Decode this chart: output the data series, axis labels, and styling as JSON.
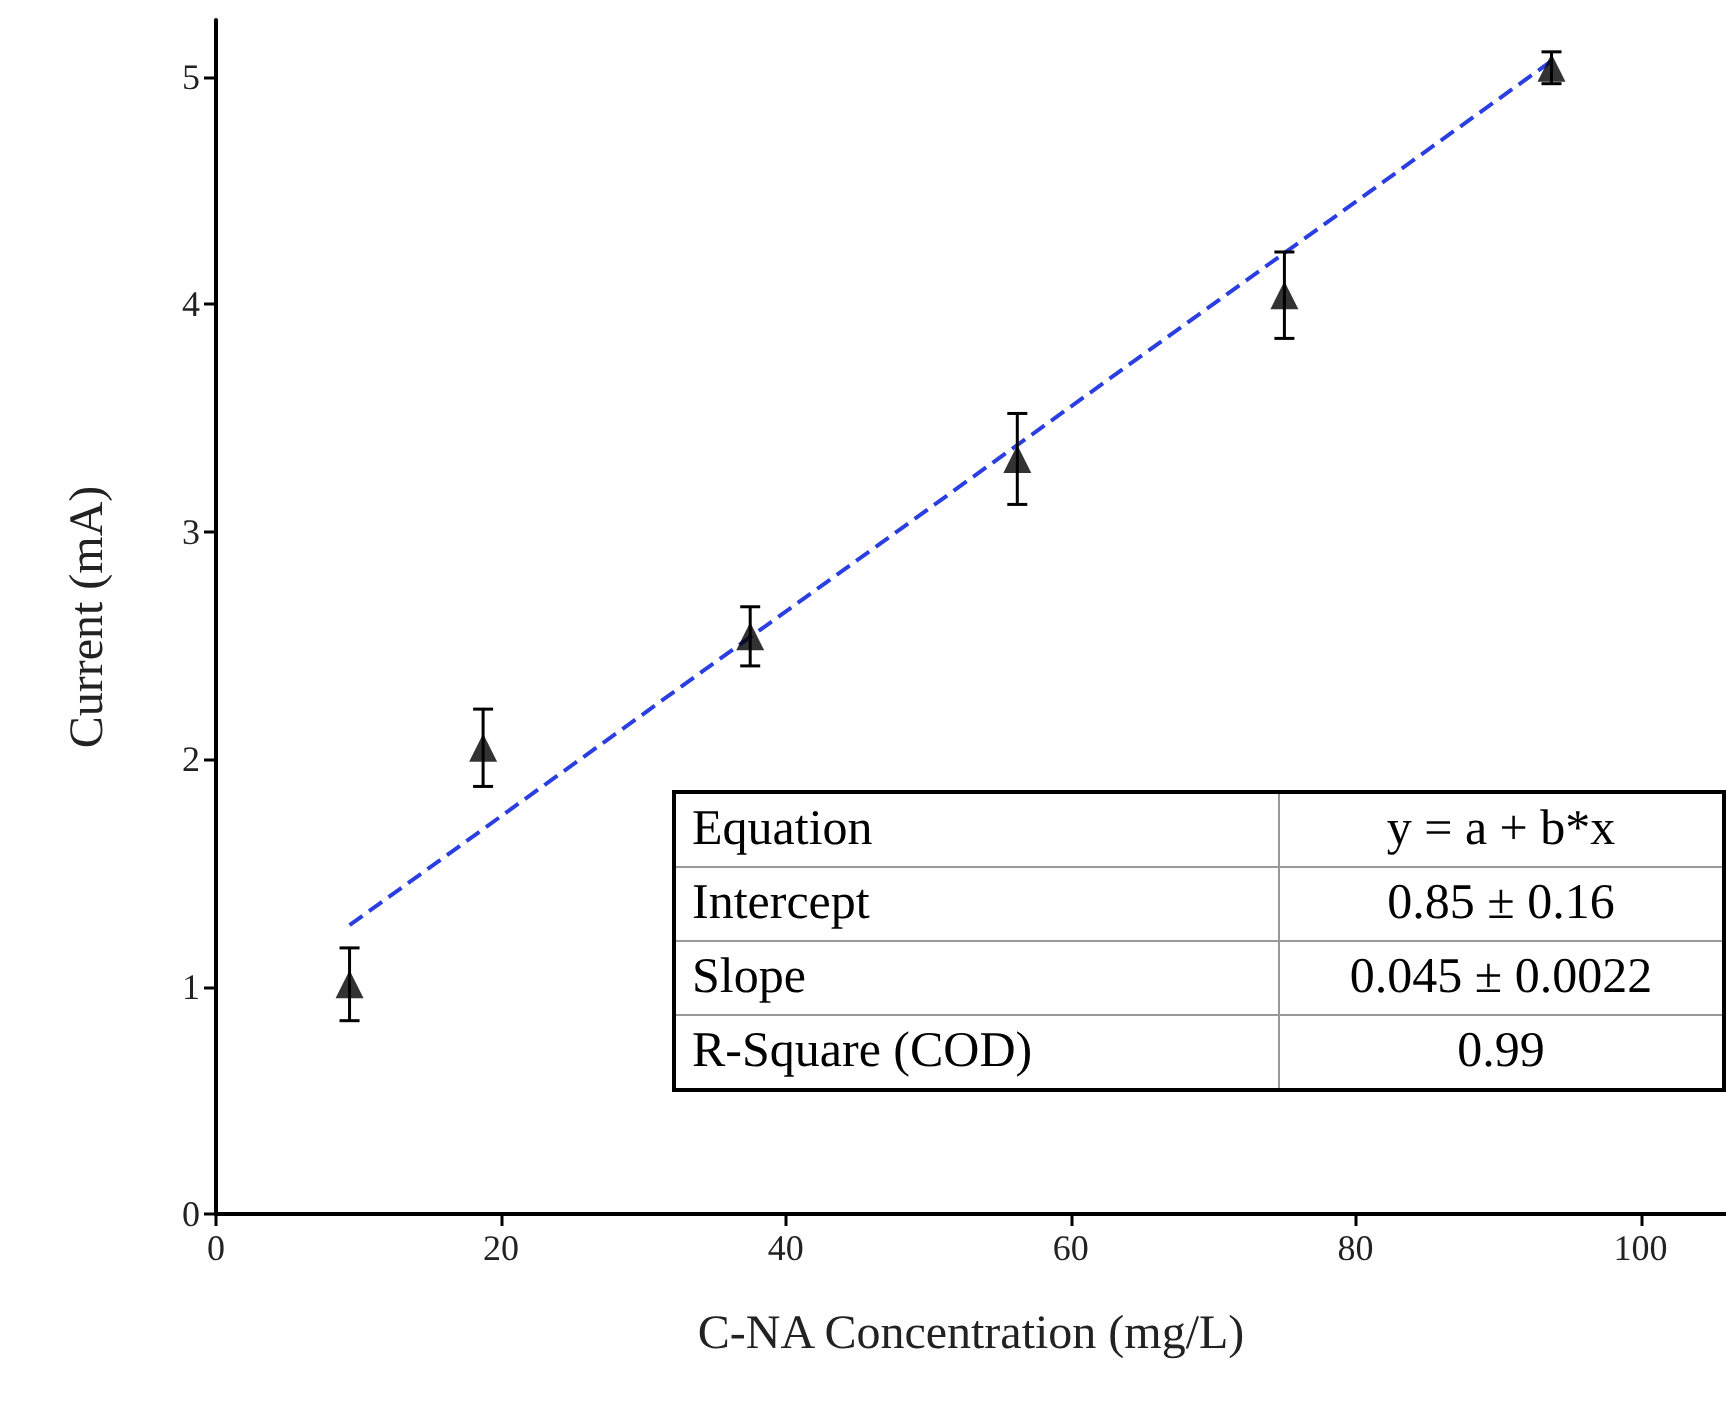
{
  "chart_data": {
    "type": "scatter",
    "xlabel": "C-NA Concentration (mg/L)",
    "ylabel": "Current (mA)",
    "xlim": [
      0,
      106
    ],
    "xticks": [
      0,
      20,
      40,
      60,
      80,
      100
    ],
    "ylim": [
      0,
      5.25
    ],
    "yticks": [
      0,
      1,
      2,
      3,
      4,
      5
    ],
    "grid": false,
    "marker": "triangle",
    "series": [
      {
        "color": "#000000",
        "x": [
          9.375,
          18.75,
          37.5,
          56.25,
          75,
          93.75
        ],
        "values": [
          1.01,
          2.05,
          2.54,
          3.32,
          4.04,
          5.04
        ],
        "errors": [
          0.16,
          0.17,
          0.13,
          0.2,
          0.19,
          0.07
        ]
      },
      {
        "type": "line",
        "color": "#2b3fe0",
        "line_style": "dashed",
        "marker": "none",
        "x": [
          9.375,
          93.75
        ],
        "values": [
          1.27,
          5.07
        ]
      }
    ],
    "annotations": [
      "Equation",
      "y = a + b*x",
      "Intercept",
      "0.85 ± 0.16",
      "Slope",
      "0.045 ± 0.0022",
      "R-Square (COD)",
      "0.99"
    ]
  }
}
